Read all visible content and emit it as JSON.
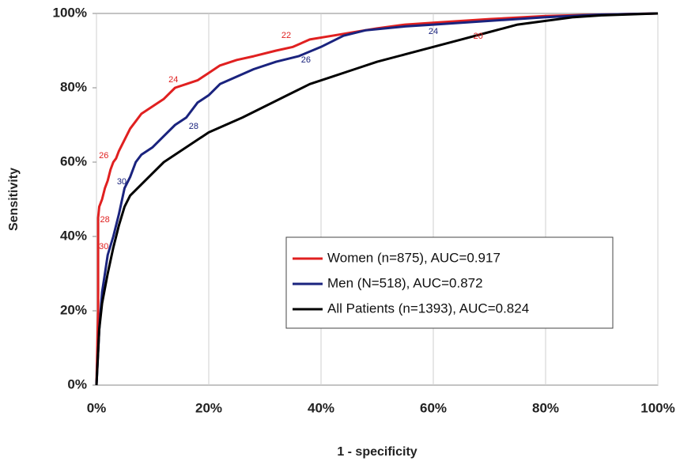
{
  "chart_data": {
    "type": "line",
    "xlabel": "1 - specificity",
    "ylabel": "Sensitivity",
    "xlim": [
      0,
      100
    ],
    "ylim": [
      0,
      100
    ],
    "xticks": [
      {
        "value": 0,
        "label": "0%"
      },
      {
        "value": 20,
        "label": "20%"
      },
      {
        "value": 40,
        "label": "40%"
      },
      {
        "value": 60,
        "label": "60%"
      },
      {
        "value": 80,
        "label": "80%"
      },
      {
        "value": 100,
        "label": "100%"
      }
    ],
    "yticks": [
      {
        "value": 0,
        "label": "0%"
      },
      {
        "value": 20,
        "label": "20%"
      },
      {
        "value": 40,
        "label": "40%"
      },
      {
        "value": 60,
        "label": "60%"
      },
      {
        "value": 80,
        "label": "80%"
      },
      {
        "value": 100,
        "label": "100%"
      }
    ],
    "grid": "x",
    "legend": "lower right",
    "series": [
      {
        "name": "Women (n=875), AUC=0.917",
        "color": "#e02020",
        "x": [
          0,
          0.3,
          0.3,
          0.5,
          1,
          1.5,
          2,
          2.5,
          3,
          3.5,
          4,
          5,
          6,
          7,
          8,
          10,
          12,
          14,
          16,
          18,
          20,
          22,
          25,
          28,
          32,
          35,
          38,
          42,
          46,
          50,
          55,
          60,
          70,
          80,
          90,
          100
        ],
        "values": [
          0,
          20,
          45,
          48,
          50,
          53,
          55,
          58,
          60,
          61,
          63,
          66,
          69,
          71,
          73,
          75,
          77,
          80,
          81,
          82,
          84,
          86,
          87.5,
          88.5,
          90,
          91,
          93,
          94,
          95,
          96,
          97,
          97.5,
          98.5,
          99.3,
          99.7,
          100
        ],
        "labels": [
          {
            "text": "26",
            "x": 1.3,
            "y": 61.7
          },
          {
            "text": "28",
            "x": 1.5,
            "y": 44.5
          },
          {
            "text": "30",
            "x": 1.3,
            "y": 37.2
          },
          {
            "text": "24",
            "x": 13.7,
            "y": 82.1
          },
          {
            "text": "22",
            "x": 33.8,
            "y": 94
          },
          {
            "text": "20",
            "x": 68,
            "y": 93.8
          }
        ]
      },
      {
        "name": "Men (N=518), AUC=0.872",
        "color": "#1a237e",
        "x": [
          0,
          0.5,
          1,
          1.5,
          2,
          3,
          4,
          5,
          6,
          7,
          8,
          10,
          12,
          14,
          16,
          18,
          20,
          22,
          25,
          28,
          32,
          36,
          40,
          44,
          48,
          55,
          60,
          70,
          80,
          90,
          100
        ],
        "values": [
          0,
          15,
          25,
          30,
          35,
          40,
          46,
          53,
          56,
          60,
          62,
          64,
          67,
          70,
          72,
          76,
          78,
          81,
          83,
          85,
          87,
          88.5,
          91,
          94,
          95.5,
          96.5,
          97,
          98,
          99,
          99.7,
          100
        ],
        "labels": [
          {
            "text": "30",
            "x": 4.5,
            "y": 54.7
          },
          {
            "text": "28",
            "x": 17.3,
            "y": 69.6
          },
          {
            "text": "26",
            "x": 37.3,
            "y": 87.4
          },
          {
            "text": "24",
            "x": 60,
            "y": 95.1
          }
        ]
      },
      {
        "name": "All Patients (n=1393), AUC=0.824",
        "color": "#000000",
        "x": [
          0,
          0.5,
          1,
          2,
          3,
          4,
          5,
          6,
          8,
          10,
          12,
          15,
          18,
          20,
          23,
          26,
          30,
          34,
          38,
          42,
          46,
          50,
          55,
          60,
          65,
          70,
          75,
          80,
          85,
          90,
          100
        ],
        "values": [
          0,
          15,
          22,
          30,
          37,
          43,
          48,
          51,
          54,
          57,
          60,
          63,
          66,
          68,
          70,
          72,
          75,
          78,
          81,
          83,
          85,
          87,
          89,
          91,
          93,
          95,
          97,
          98,
          99,
          99.5,
          100
        ]
      }
    ]
  }
}
